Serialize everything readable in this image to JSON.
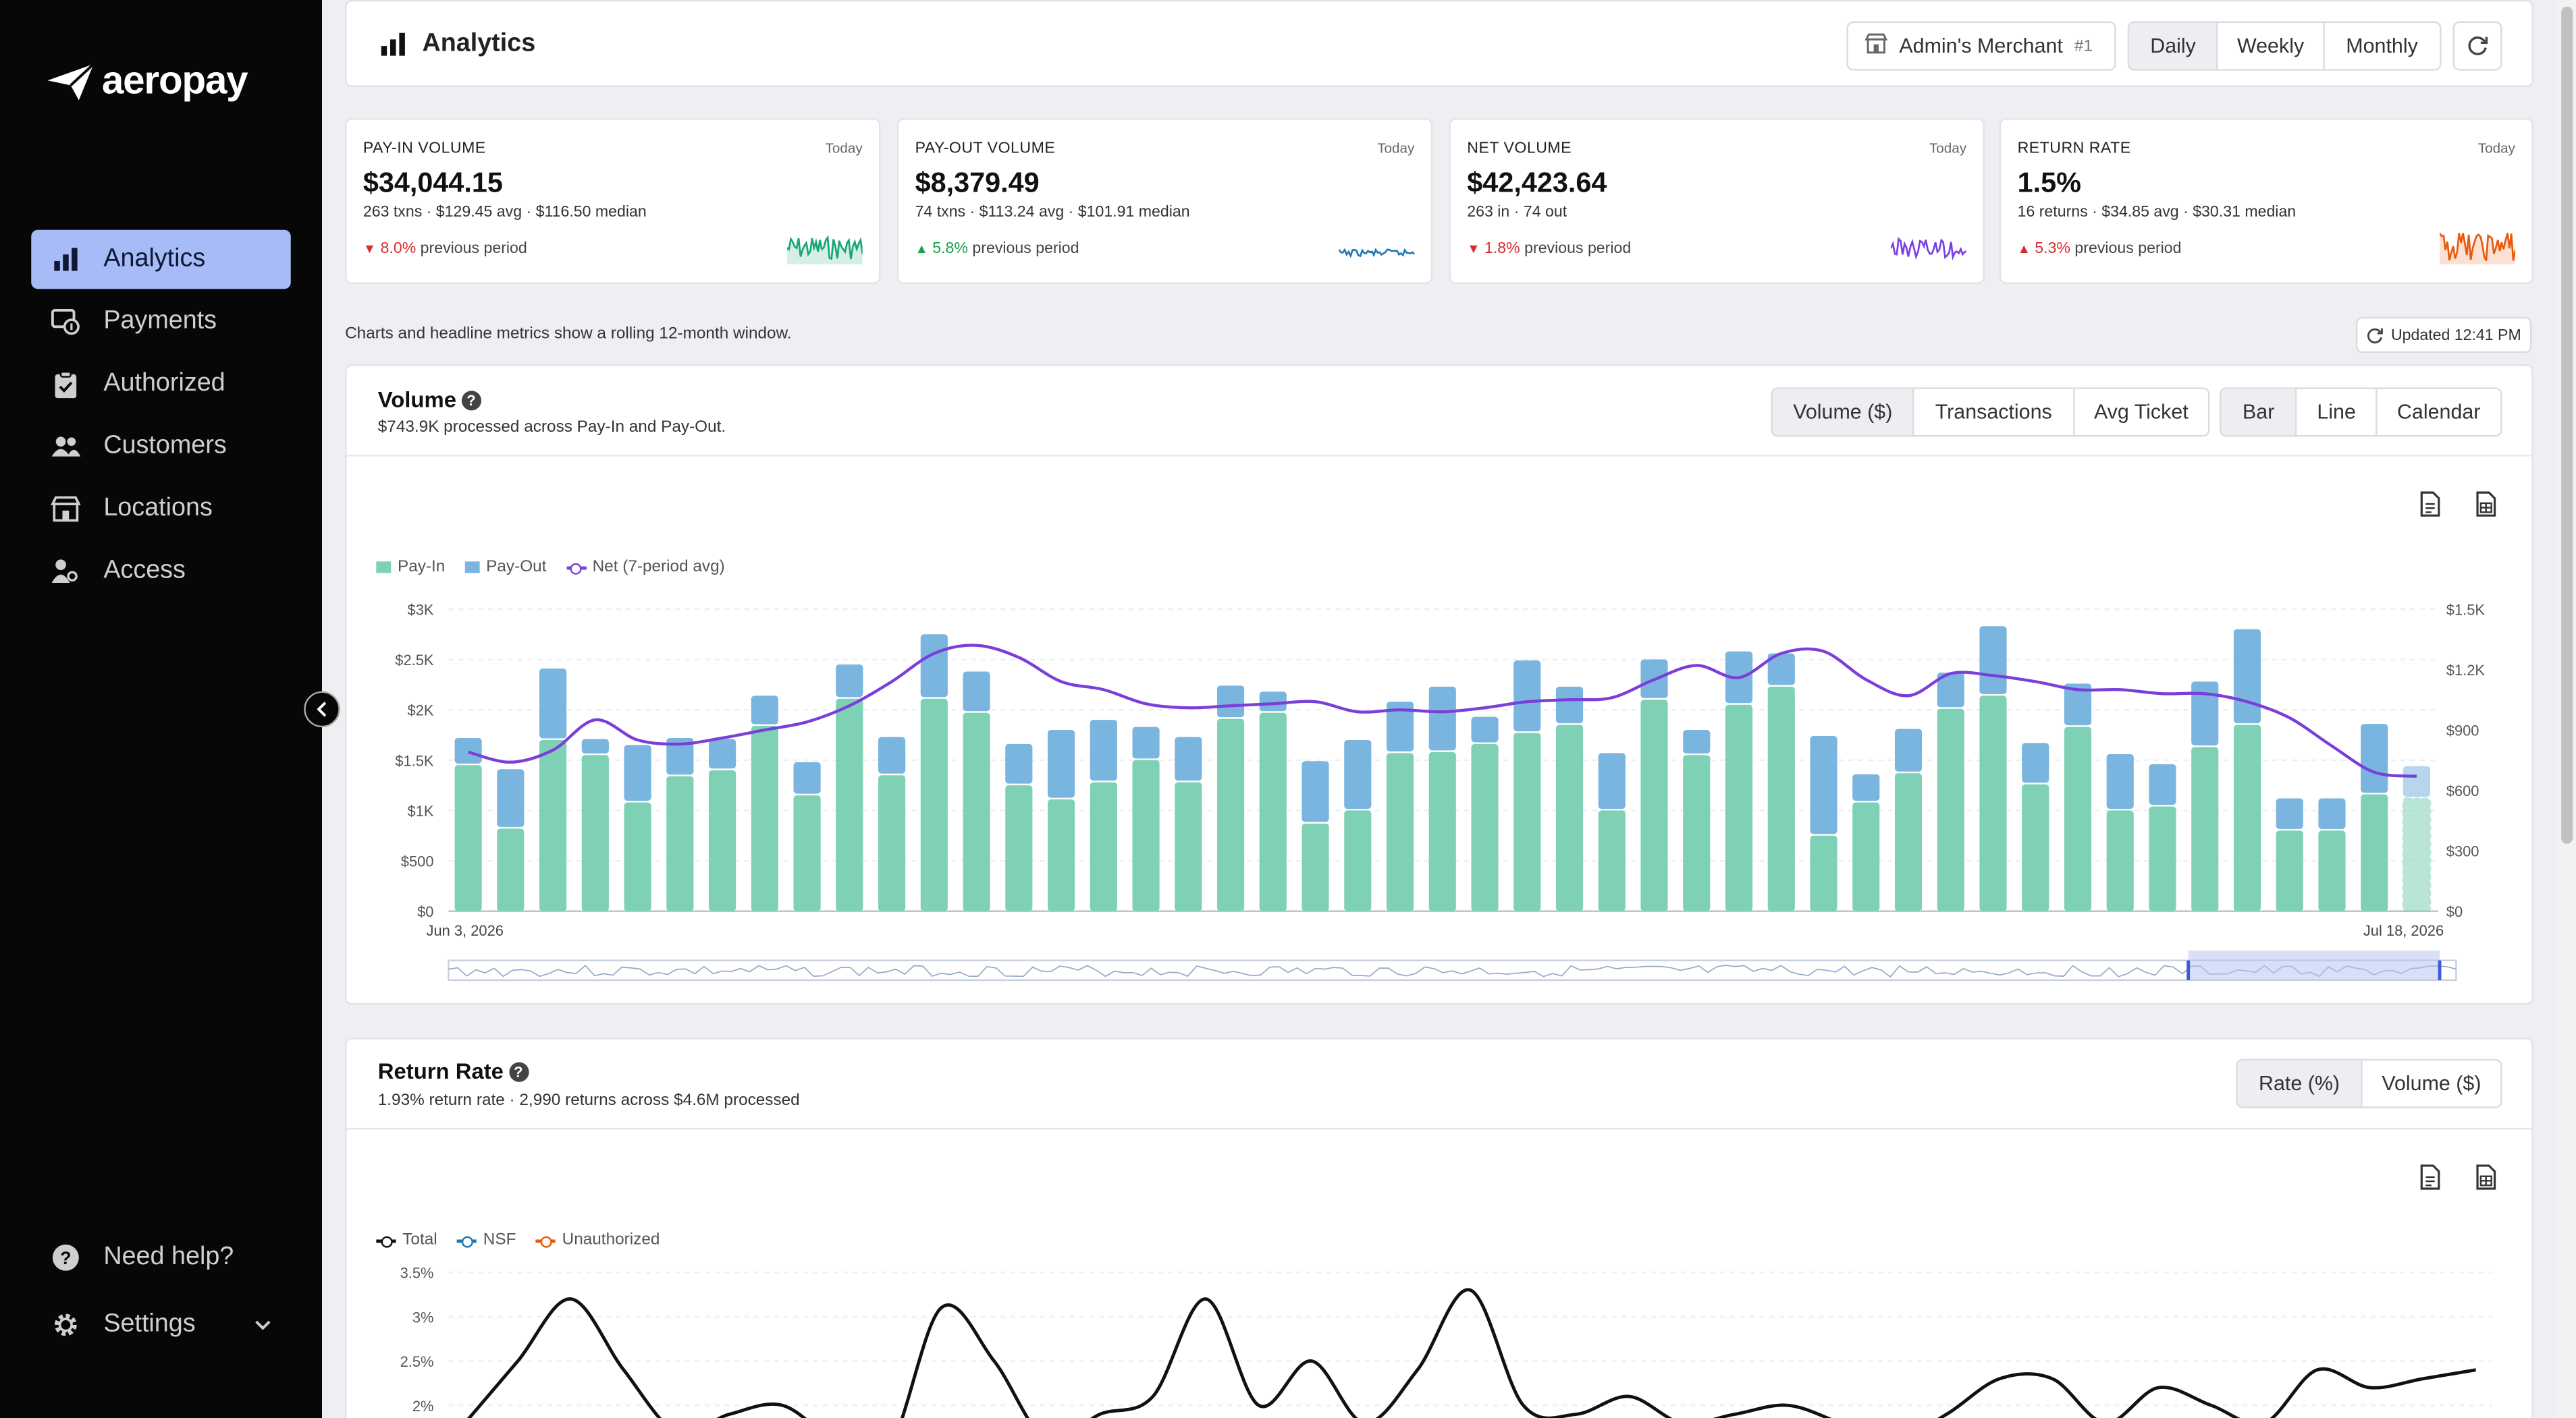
{
  "brand": {
    "name": "aeropay"
  },
  "sidebar": {
    "items": [
      {
        "label": "Analytics",
        "icon": "bar-chart-icon",
        "active": true
      },
      {
        "label": "Payments",
        "icon": "payments-icon",
        "active": false
      },
      {
        "label": "Authorized",
        "icon": "clipboard-check-icon",
        "active": false
      },
      {
        "label": "Customers",
        "icon": "users-icon",
        "active": false
      },
      {
        "label": "Locations",
        "icon": "store-icon",
        "active": false
      },
      {
        "label": "Access",
        "icon": "user-key-icon",
        "active": false
      }
    ],
    "help_label": "Need help?",
    "settings_label": "Settings"
  },
  "header": {
    "title": "Analytics",
    "merchant": {
      "name": "Admin's Merchant",
      "number": "#1"
    },
    "periods": [
      "Daily",
      "Weekly",
      "Monthly"
    ],
    "selected_period": "Daily"
  },
  "kpis": [
    {
      "label": "PAY-IN VOLUME",
      "scope": "Today",
      "value": "$34,044.15",
      "sub": "263 txns · $129.45 avg · $116.50 median",
      "change": "8.0%",
      "direction": "down",
      "change_suffix": "previous period",
      "spark_color": "#17a673"
    },
    {
      "label": "PAY-OUT VOLUME",
      "scope": "Today",
      "value": "$8,379.49",
      "sub": "74 txns · $113.24 avg · $101.91 median",
      "change": "5.8%",
      "direction": "up",
      "change_suffix": "previous period",
      "spark_color": "#1f78b4"
    },
    {
      "label": "NET VOLUME",
      "scope": "Today",
      "value": "$42,423.64",
      "sub": "263 in · 74 out",
      "change": "1.8%",
      "direction": "down",
      "change_suffix": "previous period",
      "spark_color": "#7b3fe4"
    },
    {
      "label": "RETURN RATE",
      "scope": "Today",
      "value": "1.5%",
      "sub": "16 returns · $34.85 avg · $30.31 median",
      "change": "5.3%",
      "direction": "up",
      "change_suffix": "previous period",
      "spark_color": "#e8590c"
    }
  ],
  "note": "Charts and headline metrics show a rolling 12-month window.",
  "updated": "Updated 12:41 PM",
  "volume_panel": {
    "title": "Volume",
    "subtitle": "$743.9K processed across Pay-In and Pay-Out.",
    "metric_tabs": [
      "Volume ($)",
      "Transactions",
      "Avg Ticket"
    ],
    "selected_metric": "Volume ($)",
    "view_tabs": [
      "Bar",
      "Line",
      "Calendar"
    ],
    "selected_view": "Bar"
  },
  "return_panel": {
    "title": "Return Rate",
    "subtitle": "1.93% return rate · 2,990 returns across $4.6M processed",
    "tabs": [
      "Rate (%)",
      "Volume ($)"
    ],
    "selected_tab": "Rate (%)"
  },
  "chart_data": [
    {
      "type": "bar",
      "stacked": true,
      "legend": [
        "Pay-In",
        "Pay-Out",
        "Net (7-period avg)"
      ],
      "legend_placement": "top-left",
      "x_start_label": "Jun 3, 2026",
      "x_end_label": "Jul 18, 2026",
      "y_ticks": [
        "$0",
        "$500",
        "$1K",
        "$1.5K",
        "$2K",
        "$2.5K",
        "$3K"
      ],
      "y2_ticks": [
        "$0",
        "$300",
        "$600",
        "$900",
        "$1.2K",
        "$1.5K"
      ],
      "ylim": [
        0,
        3000
      ],
      "y2lim": [
        0,
        1500
      ],
      "colors": {
        "payin": "#7fd1b5",
        "payout": "#7ab5df",
        "net": "#7a3fd9"
      },
      "series": [
        {
          "name": "Pay-In",
          "values": [
            1450,
            820,
            1700,
            1550,
            1080,
            1340,
            1400,
            1840,
            1150,
            2110,
            1350,
            2110,
            1970,
            1250,
            1110,
            1280,
            1500,
            1280,
            1910,
            1970,
            870,
            1000,
            1570,
            1580,
            1660,
            1770,
            1850,
            1000,
            2100,
            1550,
            2050,
            2230,
            750,
            1080,
            1370,
            2010,
            2140,
            1260,
            1830,
            1000,
            1040,
            1630,
            1850,
            800,
            800,
            1160,
            1120
          ],
          "partial_last": true
        },
        {
          "name": "Pay-Out",
          "values": [
            270,
            590,
            710,
            160,
            570,
            380,
            310,
            300,
            330,
            340,
            380,
            640,
            410,
            410,
            690,
            620,
            330,
            450,
            330,
            210,
            620,
            700,
            510,
            650,
            270,
            720,
            380,
            570,
            400,
            250,
            530,
            330,
            990,
            280,
            440,
            360,
            690,
            410,
            430,
            560,
            420,
            650,
            950,
            320,
            320,
            700,
            0
          ]
        },
        {
          "name": "Net (7-period avg)",
          "values": [
            790,
            740,
            800,
            950,
            850,
            830,
            860,
            900,
            940,
            1020,
            1140,
            1280,
            1320,
            1260,
            1140,
            1100,
            1030,
            1010,
            1020,
            1030,
            1040,
            990,
            1000,
            990,
            1010,
            1040,
            1050,
            1060,
            1150,
            1220,
            1160,
            1280,
            1290,
            1150,
            1070,
            1180,
            1170,
            1140,
            1100,
            1100,
            1080,
            1080,
            1040,
            960,
            820,
            690,
            670
          ]
        }
      ]
    },
    {
      "type": "line",
      "legend": [
        "Total",
        "NSF",
        "Unauthorized"
      ],
      "legend_placement": "top-left",
      "y_ticks": [
        "2%",
        "2.5%",
        "3%",
        "3.5%"
      ],
      "ylim": [
        1.8,
        3.6
      ],
      "colors": {
        "total": "#111111",
        "nsf": "#1f78b4",
        "unauthorized": "#e8590c"
      },
      "series": [
        {
          "name": "Total",
          "values": [
            1.8,
            2.5,
            3.2,
            2.4,
            1.7,
            1.9,
            2.0,
            1.6,
            1.5,
            3.1,
            2.5,
            1.6,
            1.9,
            2.1,
            3.2,
            2.0,
            2.5,
            1.8,
            2.4,
            3.3,
            2.0,
            1.9,
            2.1,
            1.8,
            1.9,
            2.0,
            1.8,
            1.6,
            1.9,
            2.3,
            2.3,
            1.8,
            2.2,
            2.0,
            1.8,
            2.4,
            2.2,
            2.3,
            2.4
          ]
        }
      ]
    }
  ]
}
